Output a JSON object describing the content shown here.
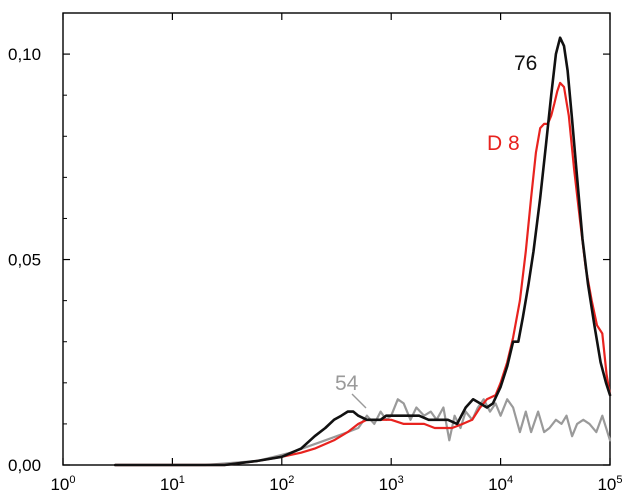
{
  "chart_data": {
    "type": "line",
    "title": "",
    "xlabel": "",
    "ylabel": "",
    "x_scale": "log",
    "xlim": [
      1,
      100000
    ],
    "ylim": [
      0,
      0.11
    ],
    "grid": false,
    "x_tick_values": [
      1,
      10,
      100,
      1000,
      10000,
      100000
    ],
    "x_ticks": [
      {
        "base": "10",
        "exp": "0"
      },
      {
        "base": "10",
        "exp": "1"
      },
      {
        "base": "10",
        "exp": "2"
      },
      {
        "base": "10",
        "exp": "3"
      },
      {
        "base": "10",
        "exp": "4"
      },
      {
        "base": "10",
        "exp": "5"
      }
    ],
    "y_tick_values": [
      0,
      0.05,
      0.1
    ],
    "y_ticks": [
      "0,00",
      "0,05",
      "0,10"
    ],
    "series": [
      {
        "name": "54",
        "color": "#9a9a9a",
        "x": [
          3,
          20,
          60,
          120,
          250,
          400,
          500,
          600,
          700,
          800,
          900,
          1000,
          1150,
          1300,
          1500,
          1700,
          2000,
          2300,
          2600,
          3000,
          3400,
          3800,
          4300,
          4800,
          5500,
          6200,
          7000,
          8000,
          9000,
          10000,
          11500,
          13000,
          15000,
          17000,
          19000,
          22000,
          25000,
          28000,
          32000,
          36000,
          40000,
          45000,
          50000,
          57000,
          65000,
          75000,
          85000,
          100000
        ],
        "y": [
          0,
          0,
          0.001,
          0.003,
          0.006,
          0.008,
          0.009,
          0.012,
          0.01,
          0.013,
          0.011,
          0.012,
          0.016,
          0.015,
          0.011,
          0.014,
          0.012,
          0.013,
          0.011,
          0.014,
          0.006,
          0.012,
          0.009,
          0.013,
          0.011,
          0.014,
          0.016,
          0.013,
          0.015,
          0.012,
          0.016,
          0.014,
          0.008,
          0.013,
          0.008,
          0.013,
          0.008,
          0.009,
          0.011,
          0.01,
          0.012,
          0.007,
          0.01,
          0.011,
          0.01,
          0.008,
          0.012,
          0.006
        ]
      },
      {
        "name": "D 8",
        "color": "#e8231f",
        "x": [
          3,
          30,
          60,
          100,
          150,
          200,
          300,
          400,
          500,
          600,
          700,
          800,
          1000,
          1300,
          1600,
          2000,
          2500,
          3000,
          3600,
          4500,
          5500,
          6500,
          7500,
          9000,
          10000,
          11500,
          13000,
          15000,
          17000,
          19000,
          21000,
          23000,
          25000,
          27000,
          29000,
          31000,
          33000,
          35000,
          38000,
          42000,
          47000,
          53000,
          60000,
          68000,
          76000,
          85000,
          93000,
          100000
        ],
        "y": [
          0,
          0,
          0.001,
          0.002,
          0.003,
          0.004,
          0.006,
          0.008,
          0.01,
          0.011,
          0.011,
          0.011,
          0.011,
          0.01,
          0.01,
          0.01,
          0.009,
          0.009,
          0.009,
          0.01,
          0.011,
          0.014,
          0.016,
          0.017,
          0.02,
          0.025,
          0.031,
          0.04,
          0.052,
          0.065,
          0.076,
          0.082,
          0.083,
          0.083,
          0.085,
          0.088,
          0.091,
          0.093,
          0.092,
          0.085,
          0.072,
          0.06,
          0.048,
          0.04,
          0.034,
          0.032,
          0.022,
          0.017
        ]
      },
      {
        "name": "76",
        "color": "#111111",
        "x": [
          3,
          30,
          60,
          100,
          150,
          200,
          250,
          300,
          350,
          400,
          450,
          500,
          600,
          700,
          800,
          900,
          1000,
          1200,
          1500,
          1800,
          2200,
          2700,
          3300,
          4000,
          4800,
          5600,
          6500,
          7500,
          8500,
          10000,
          11500,
          13000,
          14500,
          16000,
          18000,
          20000,
          23000,
          26000,
          29000,
          32000,
          35000,
          38000,
          41000,
          45000,
          50000,
          56000,
          63000,
          72000,
          82000,
          92000,
          100000
        ],
        "y": [
          0,
          0,
          0.001,
          0.002,
          0.004,
          0.007,
          0.009,
          0.011,
          0.012,
          0.013,
          0.013,
          0.012,
          0.011,
          0.011,
          0.011,
          0.012,
          0.012,
          0.012,
          0.012,
          0.012,
          0.011,
          0.011,
          0.011,
          0.01,
          0.014,
          0.016,
          0.015,
          0.014,
          0.015,
          0.019,
          0.024,
          0.03,
          0.03,
          0.036,
          0.044,
          0.052,
          0.065,
          0.078,
          0.09,
          0.1,
          0.104,
          0.102,
          0.096,
          0.084,
          0.07,
          0.055,
          0.044,
          0.034,
          0.025,
          0.02,
          0.017
        ]
      }
    ],
    "annotations": [
      {
        "text": "76",
        "series": "76",
        "color": "#111111"
      },
      {
        "text": "D 8",
        "series": "D 8",
        "color": "#e8231f"
      },
      {
        "text": "54",
        "series": "54",
        "color": "#9a9a9a"
      }
    ]
  }
}
